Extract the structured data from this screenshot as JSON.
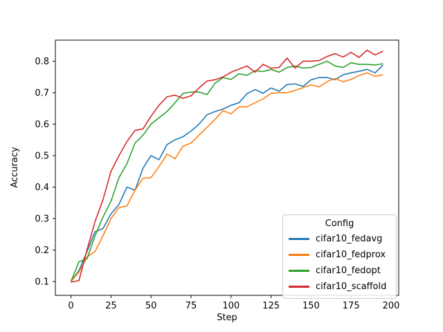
{
  "figure": {
    "background": "#ffffff",
    "frame_color": "#000000"
  },
  "chart_data": {
    "type": "line",
    "title": "",
    "xlabel": "Step",
    "ylabel": "Accuracy",
    "grid": false,
    "x_ticks": [
      0,
      25,
      50,
      75,
      100,
      125,
      150,
      175,
      200
    ],
    "y_ticks": [
      0.1,
      0.2,
      0.3,
      0.4,
      0.5,
      0.6,
      0.7,
      0.8
    ],
    "xlim": [
      -9.75,
      204.75
    ],
    "ylim": [
      0.056,
      0.867
    ],
    "x": [
      0,
      5,
      10,
      15,
      20,
      25,
      30,
      35,
      40,
      45,
      50,
      55,
      60,
      65,
      70,
      75,
      80,
      85,
      90,
      95,
      100,
      105,
      110,
      115,
      120,
      125,
      130,
      135,
      140,
      145,
      150,
      155,
      160,
      165,
      170,
      175,
      180,
      185,
      190,
      195
    ],
    "series": [
      {
        "name": "cifar10_fedavg",
        "color": "#1f77b4",
        "values": [
          0.1,
          0.135,
          0.195,
          0.258,
          0.268,
          0.315,
          0.345,
          0.4,
          0.39,
          0.46,
          0.5,
          0.487,
          0.535,
          0.55,
          0.56,
          0.578,
          0.6,
          0.63,
          0.64,
          0.648,
          0.66,
          0.668,
          0.697,
          0.71,
          0.698,
          0.715,
          0.705,
          0.726,
          0.728,
          0.72,
          0.741,
          0.748,
          0.748,
          0.741,
          0.757,
          0.763,
          0.768,
          0.774,
          0.763,
          0.788
        ]
      },
      {
        "name": "cifar10_fedprox",
        "color": "#ff7f0e",
        "values": [
          0.1,
          0.13,
          0.178,
          0.195,
          0.245,
          0.3,
          0.335,
          0.34,
          0.39,
          0.428,
          0.43,
          0.465,
          0.505,
          0.49,
          0.53,
          0.54,
          0.565,
          0.59,
          0.615,
          0.643,
          0.633,
          0.655,
          0.655,
          0.668,
          0.68,
          0.698,
          0.7,
          0.7,
          0.707,
          0.716,
          0.725,
          0.718,
          0.735,
          0.745,
          0.735,
          0.742,
          0.755,
          0.763,
          0.752,
          0.757
        ]
      },
      {
        "name": "cifar10_fedopt",
        "color": "#2ca02c",
        "values": [
          0.1,
          0.163,
          0.172,
          0.245,
          0.305,
          0.355,
          0.43,
          0.475,
          0.54,
          0.565,
          0.6,
          0.62,
          0.64,
          0.668,
          0.698,
          0.702,
          0.702,
          0.694,
          0.73,
          0.748,
          0.742,
          0.76,
          0.755,
          0.77,
          0.767,
          0.774,
          0.765,
          0.78,
          0.785,
          0.778,
          0.78,
          0.79,
          0.8,
          0.785,
          0.78,
          0.795,
          0.79,
          0.79,
          0.788,
          0.792
        ]
      },
      {
        "name": "cifar10_scaffold",
        "color": "#d62728",
        "values": [
          0.098,
          0.103,
          0.2,
          0.29,
          0.36,
          0.45,
          0.5,
          0.545,
          0.58,
          0.585,
          0.625,
          0.66,
          0.687,
          0.692,
          0.682,
          0.69,
          0.715,
          0.737,
          0.741,
          0.75,
          0.765,
          0.775,
          0.785,
          0.765,
          0.79,
          0.778,
          0.78,
          0.81,
          0.778,
          0.8,
          0.8,
          0.802,
          0.815,
          0.824,
          0.813,
          0.828,
          0.812,
          0.835,
          0.82,
          0.832
        ]
      }
    ],
    "legend": {
      "title": "Config",
      "position": "lower right"
    }
  }
}
